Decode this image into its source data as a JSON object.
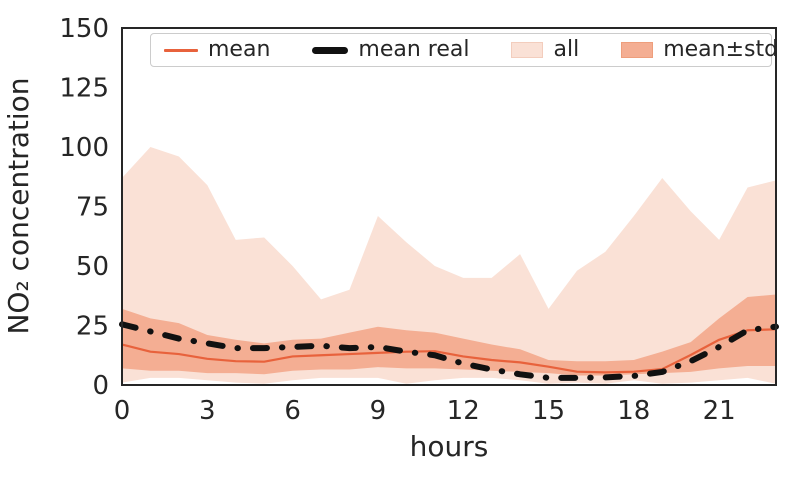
{
  "chart_data": {
    "type": "line",
    "title": "",
    "xlabel": "hours",
    "ylabel": "NO₂ concentration",
    "x": [
      0,
      1,
      2,
      3,
      4,
      5,
      6,
      7,
      8,
      9,
      10,
      11,
      12,
      13,
      14,
      15,
      16,
      17,
      18,
      19,
      20,
      21,
      22,
      23
    ],
    "xticks": [
      0,
      3,
      6,
      9,
      12,
      15,
      18,
      21
    ],
    "yticks": [
      0,
      25,
      50,
      75,
      100,
      125,
      150
    ],
    "xlim": [
      0,
      23
    ],
    "ylim": [
      0,
      150
    ],
    "grid": false,
    "legend_position": "upper center, inside, single row",
    "series": [
      {
        "id": "mean",
        "name": "mean",
        "type": "line",
        "style": "solid",
        "color": "#e8623c",
        "width": 2.2,
        "values": [
          17,
          14,
          13,
          11,
          10,
          9.8,
          12,
          12.5,
          13,
          13.5,
          14,
          14.2,
          12,
          10.5,
          9.5,
          7.7,
          5.6,
          5.3,
          5.6,
          6.7,
          12.6,
          19,
          23,
          23.4
        ]
      },
      {
        "id": "mean-real",
        "name": "mean real",
        "type": "line",
        "style": "dashdot",
        "color": "#111111",
        "width": 6,
        "values": [
          25.5,
          22.5,
          19.5,
          17.5,
          15.5,
          15.5,
          16,
          16.5,
          15.5,
          16,
          14,
          12.5,
          9,
          6.5,
          4.5,
          3,
          3,
          3.2,
          3.8,
          5.5,
          10,
          16,
          23,
          24.5
        ]
      },
      {
        "id": "all",
        "name": "all",
        "type": "band",
        "color": "#fae1d6",
        "upper": [
          87,
          100,
          96,
          84,
          61,
          62,
          50,
          36,
          40,
          71,
          60,
          50,
          45,
          45,
          55,
          32,
          48,
          56,
          71,
          87,
          73,
          61,
          83,
          86
        ],
        "lower": [
          1,
          3,
          3,
          2,
          1,
          0.5,
          2,
          3,
          3,
          3,
          0.5,
          2,
          3,
          3,
          2,
          0.5,
          1,
          0.5,
          2,
          0.5,
          1,
          2,
          3,
          0.5
        ]
      },
      {
        "id": "mean-std",
        "name": "mean±std",
        "type": "band",
        "color": "#f4ae93",
        "upper": [
          32,
          28,
          26,
          21,
          19,
          17.5,
          19,
          19.5,
          22,
          24.5,
          23,
          22,
          19.5,
          17,
          15,
          10.5,
          10,
          10,
          10.5,
          14,
          18,
          28,
          37,
          38
        ],
        "lower": [
          7,
          6,
          6,
          5,
          5,
          4.5,
          6,
          6.5,
          6.5,
          7.5,
          7,
          7,
          6.5,
          6,
          5.5,
          5,
          4,
          4,
          4.5,
          5,
          5.5,
          7,
          8,
          8
        ]
      }
    ]
  }
}
